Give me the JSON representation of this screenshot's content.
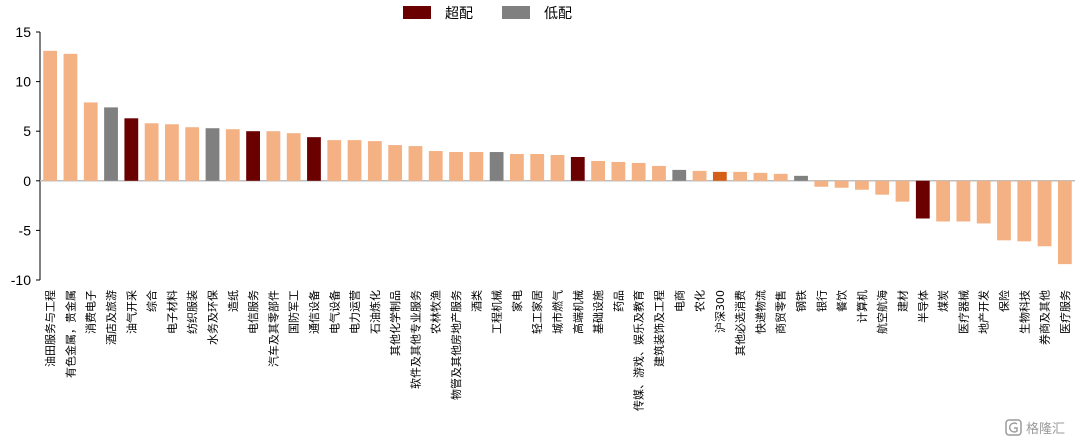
{
  "chart_data": {
    "type": "bar",
    "categories": [
      "油田服务与工程",
      "有色金属，贵金属",
      "消费电子",
      "酒店及旅游",
      "油气开采",
      "综合",
      "电子材料",
      "纺织服装",
      "水务及环保",
      "造纸",
      "电信服务",
      "汽车及其零部件",
      "国防军工",
      "通信设备",
      "电气设备",
      "电力运营",
      "石油炼化",
      "其他化学制品",
      "软件及其他专业服务",
      "农林牧渔",
      "物管及其他房地产服务",
      "酒类",
      "工程机械",
      "家电",
      "轻工家居",
      "城市燃气",
      "高端机械",
      "基础设施",
      "药品",
      "传媒、游戏、娱乐及教育",
      "建筑装饰及工程",
      "电商",
      "农化",
      "沪深300",
      "其他必选消费",
      "快递物流",
      "商贸零售",
      "钢铁",
      "银行",
      "餐饮",
      "计算机",
      "航空航海",
      "建材",
      "半导体",
      "煤炭",
      "医疗器械",
      "地产开发",
      "保险",
      "生物科技",
      "券商及其他",
      "医疗服务"
    ],
    "values": [
      13.1,
      12.8,
      7.9,
      7.4,
      6.3,
      5.8,
      5.7,
      5.4,
      5.3,
      5.2,
      5.0,
      5.0,
      4.8,
      4.4,
      4.1,
      4.1,
      4.0,
      3.6,
      3.5,
      3.0,
      2.9,
      2.9,
      2.9,
      2.7,
      2.7,
      2.6,
      2.4,
      2.0,
      1.9,
      1.8,
      1.5,
      1.1,
      1.0,
      0.9,
      0.9,
      0.8,
      0.7,
      0.5,
      -0.6,
      -0.7,
      -0.9,
      -1.4,
      -2.1,
      -3.8,
      -4.1,
      -4.1,
      -4.3,
      -6.0,
      -6.1,
      -6.6,
      -8.4
    ],
    "highlight": [
      "default",
      "default",
      "default",
      "underweight",
      "overweight",
      "default",
      "default",
      "default",
      "underweight",
      "default",
      "overweight",
      "default",
      "default",
      "overweight",
      "default",
      "default",
      "default",
      "default",
      "default",
      "default",
      "default",
      "default",
      "underweight",
      "default",
      "default",
      "default",
      "overweight",
      "default",
      "default",
      "default",
      "default",
      "underweight",
      "default",
      "benchmark",
      "default",
      "default",
      "default",
      "underweight",
      "default",
      "default",
      "default",
      "default",
      "default",
      "overweight",
      "default",
      "default",
      "default",
      "default",
      "default",
      "default",
      "default"
    ],
    "legend": [
      {
        "key": "overweight",
        "label": "超配"
      },
      {
        "key": "underweight",
        "label": "低配"
      }
    ],
    "legend_placement": "top-center",
    "colors": {
      "default": "#f4b183",
      "overweight": "#6b0000",
      "underweight": "#808080",
      "benchmark": "#d45f17"
    },
    "ylim": [
      -10,
      15
    ],
    "yticks": [
      -10,
      -5,
      0,
      5,
      10,
      15
    ],
    "title": "",
    "xlabel": "",
    "ylabel": "",
    "grid": false
  },
  "watermark": {
    "text": "格隆汇"
  }
}
